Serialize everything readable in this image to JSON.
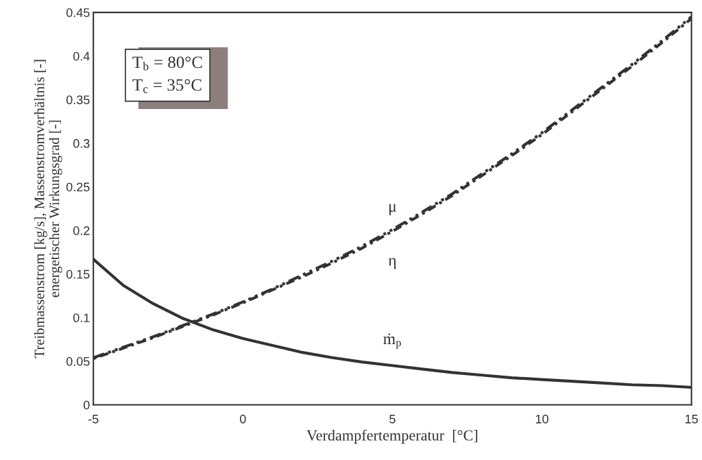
{
  "chart_data": {
    "type": "line",
    "xlabel": "Verdampfertemperatur  [°C]",
    "ylabel": "Treibmassenstrom [kg/s], Massenstromverhältnis [-]\nenergetischer Wirkungsgrad [-]",
    "x": [
      -5,
      -4,
      -3,
      -2,
      -1,
      0,
      1,
      2,
      3,
      4,
      5,
      6,
      7,
      8,
      9,
      10,
      11,
      12,
      13,
      14,
      15
    ],
    "series": [
      {
        "name": "μ",
        "color": "#333333",
        "line_style": "dashed",
        "values": [
          0.054,
          0.066,
          0.078,
          0.091,
          0.104,
          0.118,
          0.133,
          0.149,
          0.165,
          0.182,
          0.201,
          0.221,
          0.242,
          0.265,
          0.288,
          0.312,
          0.338,
          0.364,
          0.39,
          0.417,
          0.445
        ]
      },
      {
        "name": "η",
        "color": "#333333",
        "line_style": "dotted",
        "values": [
          0.053,
          0.065,
          0.077,
          0.09,
          0.103,
          0.117,
          0.132,
          0.147,
          0.163,
          0.18,
          0.199,
          0.219,
          0.24,
          0.263,
          0.286,
          0.31,
          0.336,
          0.362,
          0.388,
          0.415,
          0.443
        ]
      },
      {
        "name": "ṁ$_{p}$",
        "color": "#333333",
        "line_style": "solid",
        "values": [
          0.167,
          0.137,
          0.116,
          0.099,
          0.086,
          0.076,
          0.068,
          0.06,
          0.054,
          0.049,
          0.045,
          0.041,
          0.037,
          0.034,
          0.031,
          0.029,
          0.027,
          0.025,
          0.023,
          0.022,
          0.02
        ]
      }
    ],
    "annotations": [
      "T$_{b}$ = 80°C\nT$_{c}$ = 35°C"
    ],
    "xlim": [
      -5,
      15
    ],
    "xticks": [
      -5,
      0,
      5,
      10,
      15
    ],
    "ylim": [
      0,
      0.45
    ],
    "yticks": [
      0,
      0.05,
      0.1,
      0.15,
      0.2,
      0.25,
      0.3,
      0.35,
      0.4,
      0.45
    ],
    "grid": false,
    "legend": false,
    "marker": "none"
  }
}
